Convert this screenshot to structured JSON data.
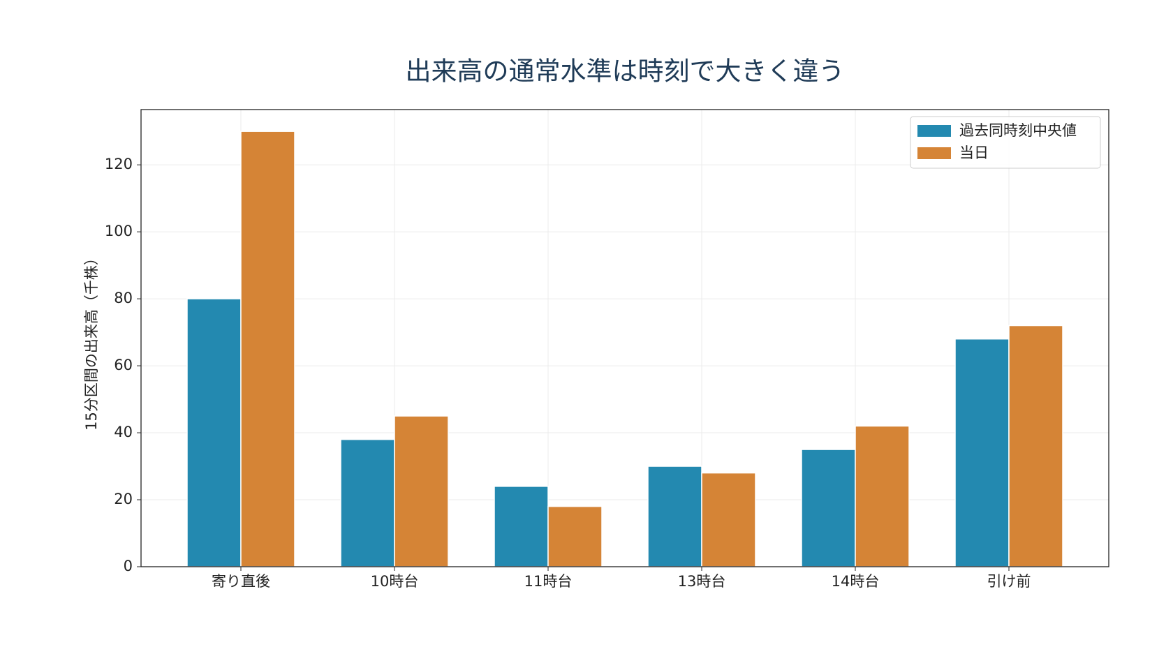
{
  "chart_data": {
    "type": "bar",
    "title": "出来高の通常水準は時刻で大きく違う",
    "y_label": "15分区間の出来高（千株）",
    "categories": [
      "寄り直後",
      "10時台",
      "11時台",
      "13時台",
      "14時台",
      "引け前"
    ],
    "series": [
      {
        "name": "過去同時刻中央値",
        "color": "#2389b0",
        "values": [
          80,
          38,
          24,
          30,
          35,
          68
        ]
      },
      {
        "name": "当日",
        "color": "#d58436",
        "values": [
          130,
          45,
          18,
          28,
          42,
          72
        ]
      }
    ],
    "ylim": [
      0,
      136.5
    ],
    "yticks": [
      0,
      20,
      40,
      60,
      80,
      100,
      120
    ],
    "grid": true,
    "legend": "upper right"
  }
}
